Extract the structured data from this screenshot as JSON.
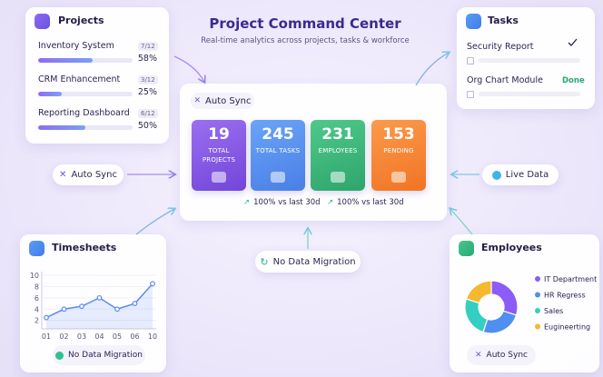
{
  "header": {
    "title": "Project Command Center",
    "subtitle": "Real-time analytics across projects, tasks & workforce"
  },
  "projects": {
    "title": "Projects",
    "items": [
      {
        "name": "Inventory System",
        "count": "7/12",
        "value": 58,
        "value_label": "58%"
      },
      {
        "name": "CRM Enhancement",
        "count": "3/12",
        "value": 25,
        "value_label": "25%"
      },
      {
        "name": "Reporting Dashboard",
        "count": "6/12",
        "value": 50,
        "value_label": "50%"
      }
    ]
  },
  "tasks": {
    "title": "Tasks",
    "items": [
      {
        "name": "Security Report"
      },
      {
        "name": "Org Chart Module",
        "status": "Done"
      }
    ]
  },
  "center": {
    "badge": "Auto Sync",
    "tiles": [
      {
        "value": 19,
        "label": "TOTAL PROJECTS"
      },
      {
        "value": 245,
        "label": "TOTAL TASKS"
      },
      {
        "value": 231,
        "label": "EMPLOYEES"
      },
      {
        "value": 153,
        "label": "PENDING"
      }
    ],
    "trends": [
      "100% vs last 30d",
      "100% vs last 30d"
    ]
  },
  "connectors": {
    "left": "Auto Sync",
    "right": "Live Data",
    "bottom": "No Data Migration"
  },
  "cards": {
    "timesheets": {
      "badge": "No Data Migration"
    },
    "employees": {
      "badge": "Auto Sync"
    }
  },
  "chart_data": [
    {
      "type": "line",
      "title": "Timesheets",
      "categories": [
        "01",
        "02",
        "03",
        "04",
        "05",
        "06",
        "10"
      ],
      "values": [
        2.5,
        4,
        4.5,
        6,
        4,
        5,
        8.5
      ],
      "color": "#5b8def",
      "ylim": [
        0.5,
        10
      ],
      "yticks": [
        2,
        4,
        6,
        8,
        10
      ]
    },
    {
      "type": "pie",
      "title": "Employees",
      "categories": [
        "IT Department",
        "HR Regress",
        "Sales",
        "Eugineerting"
      ],
      "values": [
        30,
        25,
        25,
        20
      ],
      "colors": [
        "#8b5cf6",
        "#4f8ff0",
        "#34cfc0",
        "#f5b82e"
      ]
    }
  ]
}
